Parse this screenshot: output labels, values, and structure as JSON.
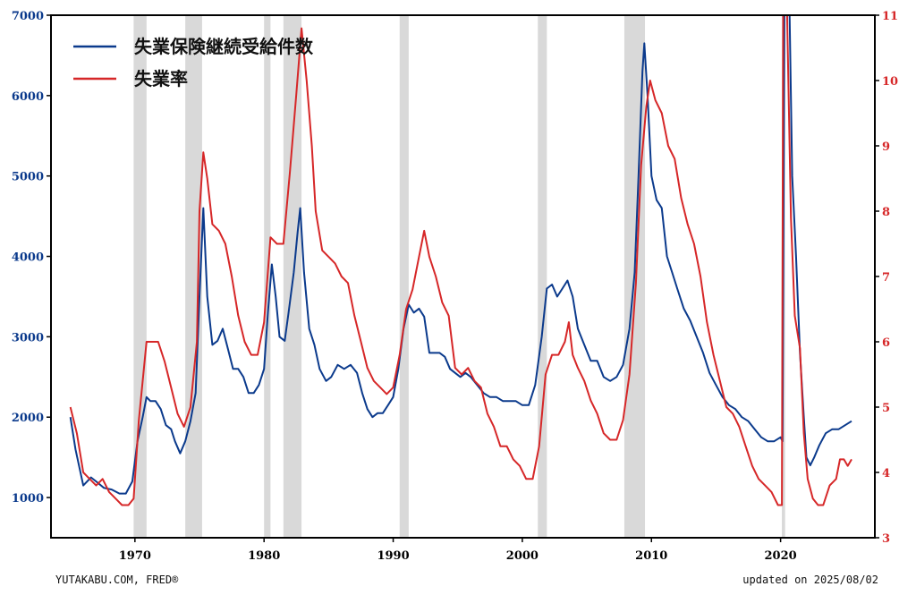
{
  "footer": {
    "source": "YUTAKABU.COM, FRED®",
    "updated": "updated on 2025/08/02"
  },
  "colors": {
    "claims": "#0b3a8c",
    "unemployment": "#d62728",
    "recession": "#d9d9d9",
    "axis": "#000000"
  },
  "chart_data": {
    "type": "line",
    "title": "",
    "legend_position": "top-left",
    "grid": false,
    "x_axis": {
      "label": "",
      "range": [
        1963.5,
        2027.3
      ],
      "ticks": [
        1970,
        1980,
        1990,
        2000,
        2010,
        2020
      ]
    },
    "y_left": {
      "label": "",
      "range": [
        500,
        7000
      ],
      "ticks": [
        1000,
        2000,
        3000,
        4000,
        5000,
        6000,
        7000
      ]
    },
    "y_right": {
      "label": "",
      "range": [
        3,
        11
      ],
      "ticks": [
        3,
        4,
        5,
        6,
        7,
        8,
        9,
        10,
        11
      ]
    },
    "recessions": [
      [
        1969.9,
        1970.9
      ],
      [
        1973.9,
        1975.2
      ],
      [
        1980.0,
        1980.5
      ],
      [
        1981.5,
        1982.9
      ],
      [
        1990.5,
        1991.2
      ],
      [
        2001.2,
        2001.9
      ],
      [
        2007.9,
        2009.5
      ],
      [
        2020.1,
        2020.35
      ]
    ],
    "series": [
      {
        "name": "失業保険継続受給件数",
        "axis": "left",
        "color": "#0b3a8c",
        "points": [
          [
            1965.0,
            2000
          ],
          [
            1965.4,
            1600
          ],
          [
            1966.0,
            1150
          ],
          [
            1966.6,
            1250
          ],
          [
            1967.0,
            1200
          ],
          [
            1967.6,
            1120
          ],
          [
            1968.2,
            1100
          ],
          [
            1968.8,
            1050
          ],
          [
            1969.3,
            1050
          ],
          [
            1969.8,
            1200
          ],
          [
            1970.2,
            1700
          ],
          [
            1970.6,
            2000
          ],
          [
            1970.9,
            2250
          ],
          [
            1971.2,
            2200
          ],
          [
            1971.6,
            2200
          ],
          [
            1972.0,
            2100
          ],
          [
            1972.4,
            1900
          ],
          [
            1972.8,
            1850
          ],
          [
            1973.1,
            1700
          ],
          [
            1973.5,
            1550
          ],
          [
            1973.9,
            1700
          ],
          [
            1974.3,
            1950
          ],
          [
            1974.7,
            2300
          ],
          [
            1975.0,
            3500
          ],
          [
            1975.3,
            4600
          ],
          [
            1975.6,
            3500
          ],
          [
            1976.0,
            2900
          ],
          [
            1976.4,
            2950
          ],
          [
            1976.8,
            3100
          ],
          [
            1977.2,
            2850
          ],
          [
            1977.6,
            2600
          ],
          [
            1978.0,
            2600
          ],
          [
            1978.4,
            2500
          ],
          [
            1978.8,
            2300
          ],
          [
            1979.2,
            2300
          ],
          [
            1979.6,
            2400
          ],
          [
            1980.0,
            2600
          ],
          [
            1980.3,
            3300
          ],
          [
            1980.6,
            3900
          ],
          [
            1980.9,
            3500
          ],
          [
            1981.2,
            3000
          ],
          [
            1981.6,
            2950
          ],
          [
            1981.9,
            3300
          ],
          [
            1982.3,
            3800
          ],
          [
            1982.6,
            4300
          ],
          [
            1982.8,
            4600
          ],
          [
            1983.1,
            3800
          ],
          [
            1983.5,
            3100
          ],
          [
            1983.9,
            2900
          ],
          [
            1984.3,
            2600
          ],
          [
            1984.8,
            2450
          ],
          [
            1985.2,
            2500
          ],
          [
            1985.7,
            2650
          ],
          [
            1986.2,
            2600
          ],
          [
            1986.7,
            2650
          ],
          [
            1987.2,
            2550
          ],
          [
            1987.6,
            2300
          ],
          [
            1988.0,
            2100
          ],
          [
            1988.4,
            2000
          ],
          [
            1988.8,
            2050
          ],
          [
            1989.2,
            2050
          ],
          [
            1989.6,
            2150
          ],
          [
            1990.0,
            2250
          ],
          [
            1990.4,
            2600
          ],
          [
            1990.8,
            3100
          ],
          [
            1991.2,
            3400
          ],
          [
            1991.6,
            3300
          ],
          [
            1992.0,
            3350
          ],
          [
            1992.4,
            3250
          ],
          [
            1992.8,
            2800
          ],
          [
            1993.2,
            2800
          ],
          [
            1993.6,
            2800
          ],
          [
            1994.0,
            2750
          ],
          [
            1994.4,
            2600
          ],
          [
            1994.8,
            2550
          ],
          [
            1995.2,
            2500
          ],
          [
            1995.6,
            2550
          ],
          [
            1996.0,
            2500
          ],
          [
            1996.5,
            2400
          ],
          [
            1997.0,
            2300
          ],
          [
            1997.5,
            2250
          ],
          [
            1998.0,
            2250
          ],
          [
            1998.5,
            2200
          ],
          [
            1999.0,
            2200
          ],
          [
            1999.5,
            2200
          ],
          [
            2000.0,
            2150
          ],
          [
            2000.5,
            2150
          ],
          [
            2001.0,
            2400
          ],
          [
            2001.5,
            3000
          ],
          [
            2001.9,
            3600
          ],
          [
            2002.3,
            3650
          ],
          [
            2002.7,
            3500
          ],
          [
            2003.1,
            3600
          ],
          [
            2003.5,
            3700
          ],
          [
            2003.9,
            3500
          ],
          [
            2004.3,
            3100
          ],
          [
            2004.8,
            2900
          ],
          [
            2005.3,
            2700
          ],
          [
            2005.8,
            2700
          ],
          [
            2006.3,
            2500
          ],
          [
            2006.8,
            2450
          ],
          [
            2007.3,
            2500
          ],
          [
            2007.8,
            2650
          ],
          [
            2008.3,
            3100
          ],
          [
            2008.7,
            3800
          ],
          [
            2009.0,
            5000
          ],
          [
            2009.3,
            6300
          ],
          [
            2009.45,
            6650
          ],
          [
            2009.7,
            6000
          ],
          [
            2010.0,
            5000
          ],
          [
            2010.4,
            4700
          ],
          [
            2010.8,
            4600
          ],
          [
            2011.2,
            4000
          ],
          [
            2011.6,
            3800
          ],
          [
            2012.0,
            3600
          ],
          [
            2012.5,
            3350
          ],
          [
            2013.0,
            3200
          ],
          [
            2013.5,
            3000
          ],
          [
            2014.0,
            2800
          ],
          [
            2014.5,
            2550
          ],
          [
            2015.0,
            2400
          ],
          [
            2015.5,
            2250
          ],
          [
            2016.0,
            2150
          ],
          [
            2016.5,
            2100
          ],
          [
            2017.0,
            2000
          ],
          [
            2017.5,
            1950
          ],
          [
            2018.0,
            1850
          ],
          [
            2018.5,
            1750
          ],
          [
            2019.0,
            1700
          ],
          [
            2019.5,
            1700
          ],
          [
            2020.0,
            1750
          ],
          [
            2020.15,
            1700
          ],
          [
            2020.3,
            7000
          ],
          [
            2020.45,
            7000
          ],
          [
            2020.7,
            7000
          ],
          [
            2020.9,
            5000
          ],
          [
            2021.2,
            4000
          ],
          [
            2021.5,
            2800
          ],
          [
            2021.8,
            2000
          ],
          [
            2022.0,
            1500
          ],
          [
            2022.3,
            1400
          ],
          [
            2022.6,
            1500
          ],
          [
            2023.0,
            1650
          ],
          [
            2023.5,
            1800
          ],
          [
            2024.0,
            1850
          ],
          [
            2024.5,
            1850
          ],
          [
            2025.0,
            1900
          ],
          [
            2025.5,
            1950
          ]
        ]
      },
      {
        "name": "失業率",
        "axis": "right",
        "color": "#d62728",
        "points": [
          [
            1965.0,
            5.0
          ],
          [
            1965.5,
            4.6
          ],
          [
            1966.0,
            4.0
          ],
          [
            1966.5,
            3.9
          ],
          [
            1967.0,
            3.8
          ],
          [
            1967.5,
            3.9
          ],
          [
            1968.0,
            3.7
          ],
          [
            1968.5,
            3.6
          ],
          [
            1969.0,
            3.5
          ],
          [
            1969.5,
            3.5
          ],
          [
            1969.9,
            3.6
          ],
          [
            1970.3,
            4.8
          ],
          [
            1970.9,
            6.0
          ],
          [
            1971.3,
            6.0
          ],
          [
            1971.8,
            6.0
          ],
          [
            1972.3,
            5.7
          ],
          [
            1972.8,
            5.3
          ],
          [
            1973.3,
            4.9
          ],
          [
            1973.8,
            4.7
          ],
          [
            1974.3,
            5.0
          ],
          [
            1974.8,
            6.0
          ],
          [
            1975.0,
            8.0
          ],
          [
            1975.3,
            8.9
          ],
          [
            1975.6,
            8.5
          ],
          [
            1976.0,
            7.8
          ],
          [
            1976.5,
            7.7
          ],
          [
            1977.0,
            7.5
          ],
          [
            1977.5,
            7.0
          ],
          [
            1978.0,
            6.4
          ],
          [
            1978.5,
            6.0
          ],
          [
            1979.0,
            5.8
          ],
          [
            1979.5,
            5.8
          ],
          [
            1980.0,
            6.3
          ],
          [
            1980.5,
            7.6
          ],
          [
            1981.0,
            7.5
          ],
          [
            1981.5,
            7.5
          ],
          [
            1982.0,
            8.6
          ],
          [
            1982.5,
            9.8
          ],
          [
            1982.9,
            10.8
          ],
          [
            1983.3,
            10.0
          ],
          [
            1983.7,
            9.0
          ],
          [
            1984.0,
            8.0
          ],
          [
            1984.5,
            7.4
          ],
          [
            1985.0,
            7.3
          ],
          [
            1985.5,
            7.2
          ],
          [
            1986.0,
            7.0
          ],
          [
            1986.5,
            6.9
          ],
          [
            1987.0,
            6.4
          ],
          [
            1987.5,
            6.0
          ],
          [
            1988.0,
            5.6
          ],
          [
            1988.5,
            5.4
          ],
          [
            1989.0,
            5.3
          ],
          [
            1989.5,
            5.2
          ],
          [
            1990.0,
            5.3
          ],
          [
            1990.5,
            5.8
          ],
          [
            1991.0,
            6.5
          ],
          [
            1991.5,
            6.8
          ],
          [
            1992.0,
            7.3
          ],
          [
            1992.4,
            7.7
          ],
          [
            1992.8,
            7.3
          ],
          [
            1993.3,
            7.0
          ],
          [
            1993.8,
            6.6
          ],
          [
            1994.3,
            6.4
          ],
          [
            1994.8,
            5.6
          ],
          [
            1995.3,
            5.5
          ],
          [
            1995.8,
            5.6
          ],
          [
            1996.3,
            5.4
          ],
          [
            1996.8,
            5.3
          ],
          [
            1997.3,
            4.9
          ],
          [
            1997.8,
            4.7
          ],
          [
            1998.3,
            4.4
          ],
          [
            1998.8,
            4.4
          ],
          [
            1999.3,
            4.2
          ],
          [
            1999.8,
            4.1
          ],
          [
            2000.3,
            3.9
          ],
          [
            2000.8,
            3.9
          ],
          [
            2001.3,
            4.4
          ],
          [
            2001.8,
            5.5
          ],
          [
            2002.3,
            5.8
          ],
          [
            2002.8,
            5.8
          ],
          [
            2003.3,
            6.0
          ],
          [
            2003.6,
            6.3
          ],
          [
            2003.9,
            5.8
          ],
          [
            2004.3,
            5.6
          ],
          [
            2004.8,
            5.4
          ],
          [
            2005.3,
            5.1
          ],
          [
            2005.8,
            4.9
          ],
          [
            2006.3,
            4.6
          ],
          [
            2006.8,
            4.5
          ],
          [
            2007.3,
            4.5
          ],
          [
            2007.8,
            4.8
          ],
          [
            2008.3,
            5.5
          ],
          [
            2008.8,
            6.9
          ],
          [
            2009.2,
            8.7
          ],
          [
            2009.6,
            9.6
          ],
          [
            2009.9,
            10.0
          ],
          [
            2010.3,
            9.7
          ],
          [
            2010.8,
            9.5
          ],
          [
            2011.3,
            9.0
          ],
          [
            2011.8,
            8.8
          ],
          [
            2012.3,
            8.2
          ],
          [
            2012.8,
            7.8
          ],
          [
            2013.3,
            7.5
          ],
          [
            2013.8,
            7.0
          ],
          [
            2014.3,
            6.3
          ],
          [
            2014.8,
            5.8
          ],
          [
            2015.3,
            5.4
          ],
          [
            2015.8,
            5.0
          ],
          [
            2016.3,
            4.9
          ],
          [
            2016.8,
            4.7
          ],
          [
            2017.3,
            4.4
          ],
          [
            2017.8,
            4.1
          ],
          [
            2018.3,
            3.9
          ],
          [
            2018.8,
            3.8
          ],
          [
            2019.3,
            3.7
          ],
          [
            2019.8,
            3.5
          ],
          [
            2020.1,
            3.5
          ],
          [
            2020.25,
            14.7
          ],
          [
            2020.5,
            11.1
          ],
          [
            2020.8,
            7.9
          ],
          [
            2021.1,
            6.4
          ],
          [
            2021.5,
            5.9
          ],
          [
            2021.8,
            4.6
          ],
          [
            2022.1,
            3.9
          ],
          [
            2022.5,
            3.6
          ],
          [
            2022.9,
            3.5
          ],
          [
            2023.3,
            3.5
          ],
          [
            2023.8,
            3.8
          ],
          [
            2024.3,
            3.9
          ],
          [
            2024.6,
            4.2
          ],
          [
            2024.9,
            4.2
          ],
          [
            2025.2,
            4.1
          ],
          [
            2025.5,
            4.2
          ]
        ]
      }
    ]
  }
}
